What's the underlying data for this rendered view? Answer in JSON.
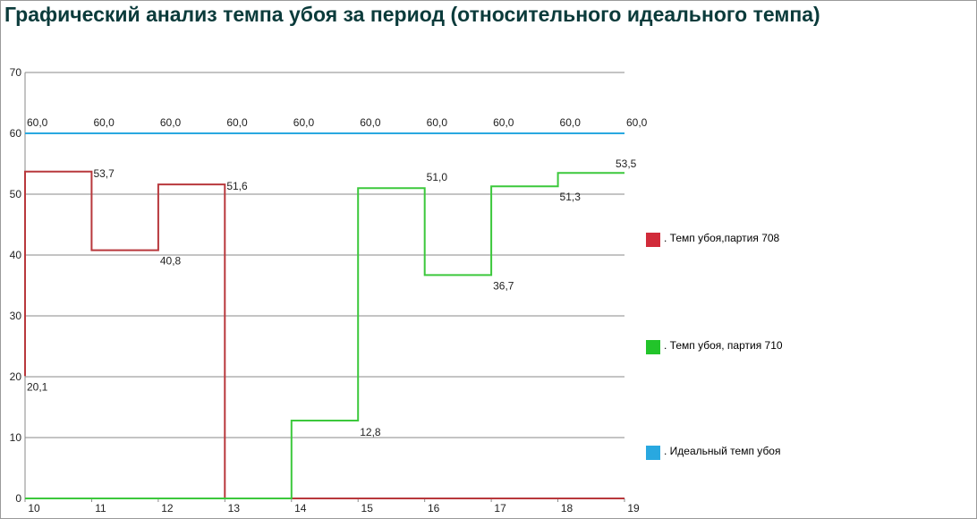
{
  "title": "Графический анализ темпа убоя за период (относительного идеального темпа)",
  "chart_data": {
    "type": "line",
    "step": true,
    "x": [
      10,
      11,
      12,
      13,
      14,
      15,
      16,
      17,
      18,
      19
    ],
    "xlim": [
      10,
      19
    ],
    "ylim": [
      0,
      70
    ],
    "yticks": [
      0,
      10,
      20,
      30,
      40,
      50,
      60,
      70
    ],
    "ytick_labels": [
      "0",
      "10",
      "20",
      "30",
      "40",
      "50",
      "60",
      "70"
    ],
    "xtick_labels": [
      "10",
      "11",
      "12",
      "13",
      "14",
      "15",
      "16",
      "17",
      "18",
      "19"
    ],
    "grid": true,
    "legend_position": "right",
    "series": [
      {
        "name": ". Темп убоя,партия 708",
        "color": "#d12b3a",
        "line_color": "#b8383c",
        "values": [
          53.7,
          40.8,
          51.6,
          0,
          0,
          0,
          0,
          0,
          0,
          0
        ],
        "start_value": 20.1,
        "labels": [
          {
            "x": 10,
            "y": 20.1,
            "text": "20,1"
          },
          {
            "x": 11,
            "y": 53.7,
            "text": "53,7"
          },
          {
            "x": 12,
            "y": 40.8,
            "text": "40,8"
          },
          {
            "x": 13,
            "y": 51.6,
            "text": "51,6"
          }
        ]
      },
      {
        "name": ". Темп убоя, партия 710",
        "color": "#22c42a",
        "line_color": "#3cc83c",
        "values": [
          0,
          0,
          0,
          0,
          12.8,
          51.0,
          36.7,
          51.3,
          53.5,
          53.5
        ],
        "labels": [
          {
            "x": 15,
            "y": 12.8,
            "text": "12,8"
          },
          {
            "x": 16,
            "y": 51.0,
            "text": "51,0"
          },
          {
            "x": 17,
            "y": 36.7,
            "text": "36,7"
          },
          {
            "x": 18,
            "y": 51.3,
            "text": "51,3"
          },
          {
            "x": 19,
            "y": 53.5,
            "text": "53,5"
          }
        ]
      },
      {
        "name": ". Идеальный темп убоя",
        "color": "#29a8e0",
        "line_color": "#29a8e0",
        "values": [
          60.0,
          60.0,
          60.0,
          60.0,
          60.0,
          60.0,
          60.0,
          60.0,
          60.0,
          60.0
        ],
        "labels": [
          {
            "x": 10,
            "y": 60.0,
            "text": "60,0"
          },
          {
            "x": 11,
            "y": 60.0,
            "text": "60,0"
          },
          {
            "x": 12,
            "y": 60.0,
            "text": "60,0"
          },
          {
            "x": 13,
            "y": 60.0,
            "text": "60,0"
          },
          {
            "x": 14,
            "y": 60.0,
            "text": "60,0"
          },
          {
            "x": 15,
            "y": 60.0,
            "text": "60,0"
          },
          {
            "x": 16,
            "y": 60.0,
            "text": "60,0"
          },
          {
            "x": 17,
            "y": 60.0,
            "text": "60,0"
          },
          {
            "x": 18,
            "y": 60.0,
            "text": "60,0"
          },
          {
            "x": 19,
            "y": 60.0,
            "text": "60,0"
          }
        ]
      }
    ]
  }
}
